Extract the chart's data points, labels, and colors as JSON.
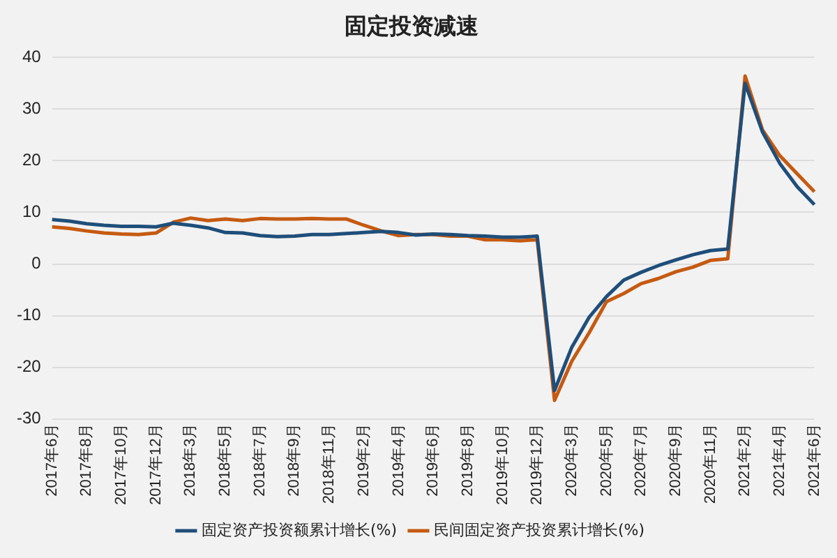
{
  "chart_data": {
    "type": "line",
    "title": "固定投资减速",
    "categories": [
      "2017年6月",
      null,
      "2017年8月",
      null,
      "2017年10月",
      null,
      "2017年12月",
      null,
      "2018年3月",
      null,
      "2018年5月",
      null,
      "2018年7月",
      null,
      "2018年9月",
      null,
      "2018年11月",
      null,
      "2019年2月",
      null,
      "2019年4月",
      null,
      "2019年6月",
      null,
      "2019年8月",
      null,
      "2019年10月",
      null,
      "2019年12月",
      null,
      "2020年3月",
      null,
      "2020年5月",
      null,
      "2020年7月",
      null,
      "2020年9月",
      null,
      "2020年11月",
      null,
      "2021年2月",
      null,
      "2021年4月",
      null,
      "2021年6月"
    ],
    "series": [
      {
        "name": "固定资产投资额累计增长(%)",
        "color": "#1f4e79",
        "values": [
          8.6,
          8.3,
          7.8,
          7.5,
          7.3,
          7.3,
          7.2,
          7.9,
          7.5,
          7.0,
          6.1,
          6.0,
          5.5,
          5.3,
          5.4,
          5.7,
          5.7,
          5.9,
          6.1,
          6.3,
          6.1,
          5.6,
          5.8,
          5.7,
          5.5,
          5.4,
          5.2,
          5.2,
          5.4,
          -24.5,
          -16.1,
          -10.3,
          -6.3,
          -3.1,
          -1.6,
          -0.3,
          0.8,
          1.8,
          2.6,
          2.9,
          35.0,
          25.6,
          19.5,
          15.0,
          11.5
        ]
      },
      {
        "name": "民间固定资产投资累计增长(%)",
        "color": "#c55a11",
        "values": [
          7.2,
          6.9,
          6.4,
          6.0,
          5.8,
          5.7,
          6.0,
          8.1,
          8.9,
          8.4,
          8.7,
          8.4,
          8.8,
          8.7,
          8.7,
          8.8,
          8.7,
          8.7,
          7.5,
          6.4,
          5.5,
          5.7,
          5.7,
          5.4,
          5.4,
          4.7,
          4.7,
          4.5,
          4.7,
          -26.4,
          -18.8,
          -13.3,
          -7.3,
          -5.7,
          -3.8,
          -2.8,
          -1.5,
          -0.6,
          0.7,
          1.0,
          36.4,
          26.0,
          21.0,
          17.5,
          14.0
        ]
      }
    ],
    "ylim": [
      -30,
      40
    ],
    "yticks": [
      -30,
      -20,
      -10,
      0,
      10,
      20,
      30,
      40
    ],
    "grid": "y",
    "legend": "bottom",
    "marker": "none",
    "line_style": "solid"
  }
}
